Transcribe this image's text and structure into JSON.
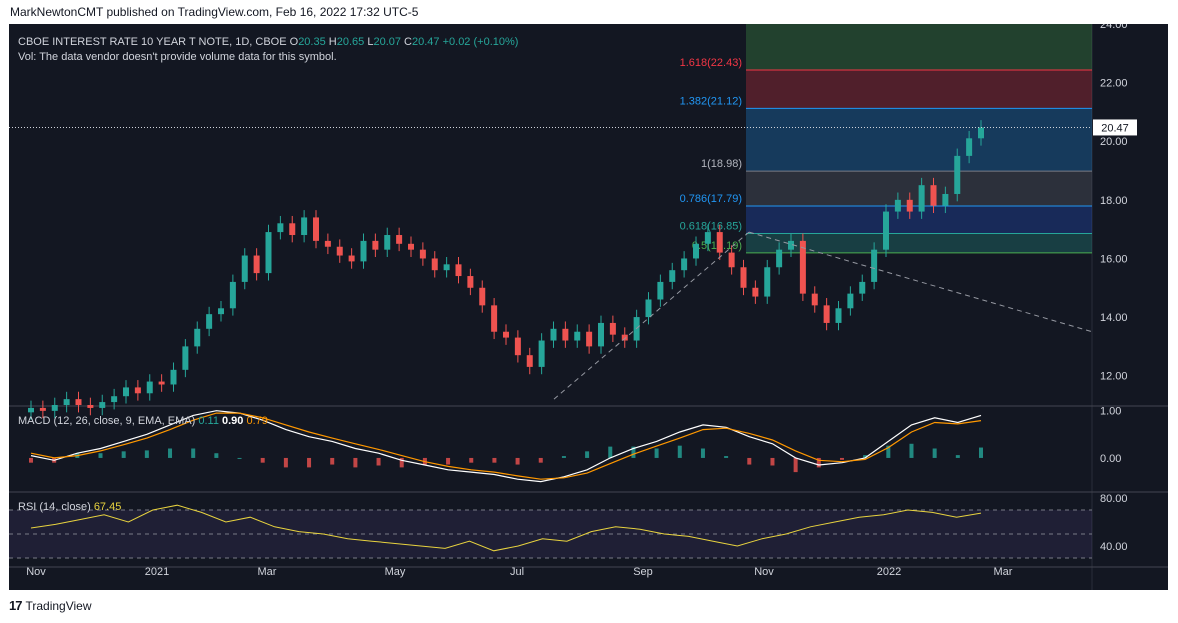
{
  "header": {
    "text": "MarkNewtonCMT published on TradingView.com, Feb 16, 2022 17:32 UTC-5"
  },
  "legend": {
    "symbol": "CBOE INTEREST RATE 10 YEAR T NOTE, 1D, CBOE",
    "open_label": "O",
    "open": "20.35",
    "high_label": "H",
    "high": "20.65",
    "low_label": "L",
    "low": "20.07",
    "close_label": "C",
    "close": "20.47",
    "change": "+0.02 (+0.10%)",
    "volume_note": "Vol: The data vendor doesn't provide volume data for this symbol."
  },
  "macd_legend": {
    "label": "MACD (12, 26, close, 9, EMA, EMA)",
    "v1": "0.11",
    "v2": "0.90",
    "v3": "0.79"
  },
  "rsi_legend": {
    "label": "RSI (14, close)",
    "v": "67.45"
  },
  "footer": {
    "brand": "TradingView",
    "logo": "17"
  },
  "colors": {
    "background": "#131722",
    "up": "#26a69a",
    "down": "#ef5350",
    "macd_line": "#ffffff",
    "signal_line": "#ff9800",
    "rsi_line": "#e8d33f",
    "text": "#d1d4dc"
  },
  "chart_data": [
    {
      "type": "candlestick",
      "title": "CBOE INTEREST RATE 10 YEAR T NOTE, 1D, CBOE",
      "x_ticks": [
        "Nov",
        "2021",
        "Mar",
        "May",
        "Jul",
        "Sep",
        "Nov",
        "2022",
        "Mar"
      ],
      "y_ticks": [
        "24.00",
        "22.00",
        "20.00",
        "18.00",
        "16.00",
        "14.00",
        "12.00"
      ],
      "ylim": [
        11.0,
        24.0
      ],
      "last_price": "20.47",
      "weekly_closes": [
        10.9,
        10.8,
        11.0,
        11.2,
        11.0,
        10.9,
        11.1,
        11.3,
        11.6,
        11.4,
        11.8,
        11.7,
        12.2,
        13.0,
        13.6,
        14.1,
        14.3,
        15.2,
        16.1,
        15.5,
        16.9,
        17.2,
        16.8,
        17.4,
        16.6,
        16.4,
        16.1,
        15.9,
        16.6,
        16.3,
        16.8,
        16.5,
        16.3,
        16.0,
        15.6,
        15.8,
        15.4,
        15.0,
        14.4,
        13.5,
        13.3,
        12.7,
        12.3,
        13.2,
        13.6,
        13.2,
        13.5,
        13.0,
        13.8,
        13.4,
        13.2,
        14.0,
        14.6,
        15.2,
        15.6,
        16.0,
        16.5,
        16.9,
        16.2,
        15.7,
        15.0,
        14.7,
        15.7,
        16.3,
        16.6,
        14.8,
        14.4,
        13.8,
        14.3,
        14.8,
        15.2,
        16.3,
        17.6,
        18.0,
        17.6,
        18.5,
        17.8,
        18.2,
        19.5,
        20.1,
        20.47
      ],
      "fib_levels": [
        {
          "ratio": "0.5",
          "value": 16.19,
          "label": "0.5(16.19)"
        },
        {
          "ratio": "0.618",
          "value": 16.85,
          "label": "0.618(16.85)"
        },
        {
          "ratio": "0.786",
          "value": 17.79,
          "label": "0.786(17.79)"
        },
        {
          "ratio": "1",
          "value": 18.98,
          "label": "1(18.98)"
        },
        {
          "ratio": "1.382",
          "value": 21.12,
          "label": "1.382(21.12)"
        },
        {
          "ratio": "1.618",
          "value": 22.43,
          "label": "1.618(22.43)"
        }
      ],
      "trendlines": [
        {
          "from": [
            "Aug",
            11.2
          ],
          "to": [
            "Oct",
            16.9
          ]
        },
        {
          "from": [
            "Oct",
            16.9
          ],
          "to": [
            "Mar",
            13.5
          ]
        }
      ]
    },
    {
      "type": "line",
      "title": "MACD (12, 26, close, 9, EMA, EMA)",
      "y_ticks": [
        "1.00",
        "0.00"
      ],
      "series": [
        {
          "name": "MACD",
          "color": "#ffffff",
          "values": [
            0.05,
            -0.05,
            0.1,
            0.2,
            0.35,
            0.5,
            0.7,
            0.9,
            1.0,
            0.95,
            0.8,
            0.6,
            0.45,
            0.35,
            0.2,
            0.1,
            -0.05,
            -0.15,
            -0.25,
            -0.3,
            -0.35,
            -0.45,
            -0.5,
            -0.4,
            -0.25,
            0.0,
            0.2,
            0.35,
            0.55,
            0.7,
            0.65,
            0.45,
            0.3,
            0.0,
            -0.15,
            -0.1,
            0.0,
            0.35,
            0.7,
            0.85,
            0.75,
            0.9
          ]
        },
        {
          "name": "Signal",
          "color": "#ff9800",
          "values": [
            0.1,
            0.0,
            0.05,
            0.15,
            0.28,
            0.42,
            0.6,
            0.8,
            0.95,
            0.95,
            0.85,
            0.7,
            0.55,
            0.42,
            0.3,
            0.18,
            0.05,
            -0.08,
            -0.18,
            -0.25,
            -0.3,
            -0.38,
            -0.45,
            -0.42,
            -0.32,
            -0.12,
            0.08,
            0.25,
            0.42,
            0.6,
            0.63,
            0.52,
            0.38,
            0.15,
            -0.05,
            -0.08,
            -0.03,
            0.22,
            0.55,
            0.75,
            0.72,
            0.79
          ]
        }
      ]
    },
    {
      "type": "line",
      "title": "RSI (14, close)",
      "y_ticks": [
        "80.00",
        "40.00"
      ],
      "bands": [
        70,
        50,
        30
      ],
      "series": [
        {
          "name": "RSI",
          "color": "#e8d33f",
          "values": [
            55,
            58,
            62,
            66,
            60,
            70,
            74,
            68,
            60,
            64,
            56,
            52,
            50,
            46,
            44,
            42,
            40,
            38,
            44,
            36,
            40,
            46,
            44,
            52,
            56,
            54,
            50,
            48,
            44,
            40,
            46,
            50,
            56,
            60,
            64,
            66,
            70,
            68,
            64,
            67.45
          ]
        }
      ]
    }
  ]
}
